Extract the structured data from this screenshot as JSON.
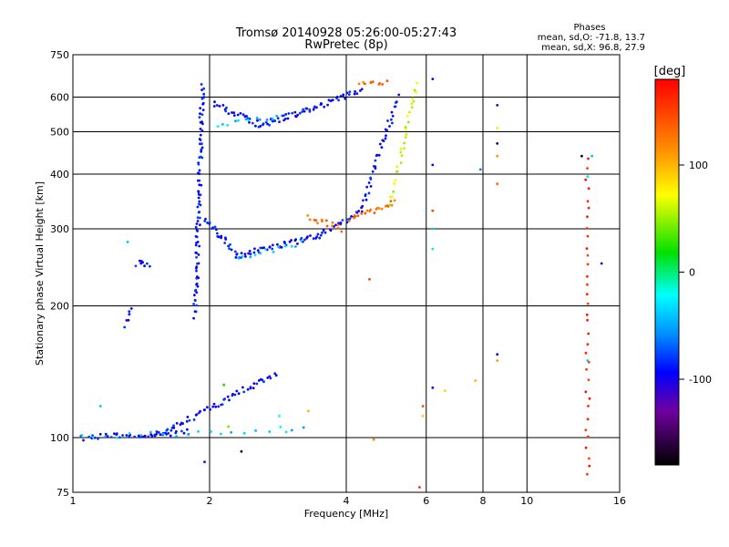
{
  "chart_data": {
    "type": "scatter",
    "title": "Tromsø 20140928 05:26:00-05:27:43",
    "subtitle": "RwPretec (8p)",
    "xlabel": "Frequency [MHz]",
    "ylabel": "Stationary phase Virtual Height [km]",
    "x_scale": "log",
    "y_scale": "log",
    "xlim": [
      1,
      16
    ],
    "ylim": [
      75,
      750
    ],
    "x_ticks": [
      1,
      2,
      4,
      6,
      8,
      10,
      16
    ],
    "y_ticks": [
      75,
      100,
      200,
      300,
      400,
      500,
      600,
      750
    ],
    "grid": true,
    "phases_box": {
      "heading": "Phases",
      "line_o": "mean, sd,O: -71.8, 13.7",
      "line_x": "mean, sd,X:  96.8, 27.9"
    },
    "colorbar": {
      "label": "[deg]",
      "range": [
        -180,
        180
      ],
      "ticks": [
        100,
        0,
        -100
      ],
      "tick_labels": [
        "100",
        "0",
        "-100"
      ]
    },
    "series": [
      {
        "phase": -90,
        "segments": [
          {
            "x0": 1.05,
            "x1": 1.8,
            "y0": 100,
            "y1": 103,
            "n": 40
          },
          {
            "x0": 1.5,
            "x1": 2.8,
            "y0": 100,
            "y1": 140,
            "n": 60
          },
          {
            "x0": 1.86,
            "x1": 1.93,
            "y0": 190,
            "y1": 640,
            "n": 90
          },
          {
            "x0": 1.92,
            "x1": 2.3,
            "y0": 320,
            "y1": 262,
            "n": 25
          },
          {
            "x0": 2.3,
            "x1": 3.5,
            "y0": 260,
            "y1": 290,
            "n": 45
          },
          {
            "x0": 3.5,
            "x1": 4.3,
            "y0": 290,
            "y1": 330,
            "n": 20
          },
          {
            "x0": 4.3,
            "x1": 5.2,
            "y0": 330,
            "y1": 600,
            "n": 40
          },
          {
            "x0": 2.05,
            "x1": 2.6,
            "y0": 580,
            "y1": 515,
            "n": 25
          },
          {
            "x0": 2.6,
            "x1": 3.3,
            "y0": 520,
            "y1": 560,
            "n": 30
          },
          {
            "x0": 3.3,
            "x1": 4.3,
            "y0": 560,
            "y1": 620,
            "n": 30
          },
          {
            "x0": 1.3,
            "x1": 1.35,
            "y0": 180,
            "y1": 195,
            "n": 6
          },
          {
            "x0": 1.38,
            "x1": 1.48,
            "y0": 250,
            "y1": 250,
            "n": 8
          }
        ]
      },
      {
        "phase": -40,
        "segments": [
          {
            "x0": 1.05,
            "x1": 3.2,
            "y0": 100,
            "y1": 105,
            "n": 20
          },
          {
            "x0": 2.1,
            "x1": 2.8,
            "y0": 520,
            "y1": 545,
            "n": 12
          },
          {
            "x0": 2.3,
            "x1": 3.2,
            "y0": 258,
            "y1": 278,
            "n": 12
          }
        ]
      },
      {
        "phase": 130,
        "segments": [
          {
            "x0": 3.3,
            "x1": 3.9,
            "y0": 320,
            "y1": 300,
            "n": 14
          },
          {
            "x0": 4.1,
            "x1": 5.1,
            "y0": 315,
            "y1": 345,
            "n": 22
          },
          {
            "x0": 4.3,
            "x1": 4.9,
            "y0": 640,
            "y1": 645,
            "n": 10
          }
        ]
      },
      {
        "phase": 60,
        "segments": [
          {
            "x0": 5.0,
            "x1": 5.7,
            "y0": 345,
            "y1": 640,
            "n": 30
          }
        ]
      },
      {
        "phase": 160,
        "segments": [
          {
            "x0": 13.6,
            "x1": 13.6,
            "y0": 82,
            "y1": 430,
            "n": 34
          }
        ]
      }
    ],
    "sparse_points": [
      {
        "x": 6.2,
        "y": 660,
        "phase": -100
      },
      {
        "x": 8.6,
        "y": 575,
        "phase": -110
      },
      {
        "x": 8.6,
        "y": 510,
        "phase": 80
      },
      {
        "x": 8.6,
        "y": 470,
        "phase": -160
      },
      {
        "x": 8.6,
        "y": 440,
        "phase": 110
      },
      {
        "x": 8.6,
        "y": 380,
        "phase": 130
      },
      {
        "x": 6.2,
        "y": 420,
        "phase": -100
      },
      {
        "x": 7.9,
        "y": 410,
        "phase": -60
      },
      {
        "x": 6.2,
        "y": 330,
        "phase": 150
      },
      {
        "x": 6.2,
        "y": 300,
        "phase": -40
      },
      {
        "x": 6.2,
        "y": 270,
        "phase": -30
      },
      {
        "x": 4.5,
        "y": 230,
        "phase": 150
      },
      {
        "x": 8.6,
        "y": 155,
        "phase": -100
      },
      {
        "x": 8.6,
        "y": 150,
        "phase": 110
      },
      {
        "x": 6.2,
        "y": 130,
        "phase": -100
      },
      {
        "x": 6.6,
        "y": 128,
        "phase": 90
      },
      {
        "x": 7.7,
        "y": 135,
        "phase": 100
      },
      {
        "x": 5.9,
        "y": 118,
        "phase": 150
      },
      {
        "x": 5.9,
        "y": 112,
        "phase": 90
      },
      {
        "x": 5.8,
        "y": 77,
        "phase": 160
      },
      {
        "x": 3.3,
        "y": 115,
        "phase": 100
      },
      {
        "x": 4.6,
        "y": 99,
        "phase": 120
      },
      {
        "x": 2.35,
        "y": 93,
        "phase": -160
      },
      {
        "x": 1.95,
        "y": 88,
        "phase": -120
      },
      {
        "x": 13.2,
        "y": 440,
        "phase": -170
      },
      {
        "x": 13.9,
        "y": 440,
        "phase": -40
      },
      {
        "x": 13.6,
        "y": 395,
        "phase": -30
      },
      {
        "x": 14.6,
        "y": 250,
        "phase": -100
      },
      {
        "x": 13.6,
        "y": 150,
        "phase": -40
      },
      {
        "x": 1.32,
        "y": 280,
        "phase": -40
      },
      {
        "x": 1.15,
        "y": 118,
        "phase": -40
      },
      {
        "x": 2.85,
        "y": 112,
        "phase": -20
      },
      {
        "x": 2.95,
        "y": 103,
        "phase": -30
      },
      {
        "x": 2.2,
        "y": 106,
        "phase": 40
      },
      {
        "x": 2.15,
        "y": 132,
        "phase": 20
      }
    ]
  }
}
